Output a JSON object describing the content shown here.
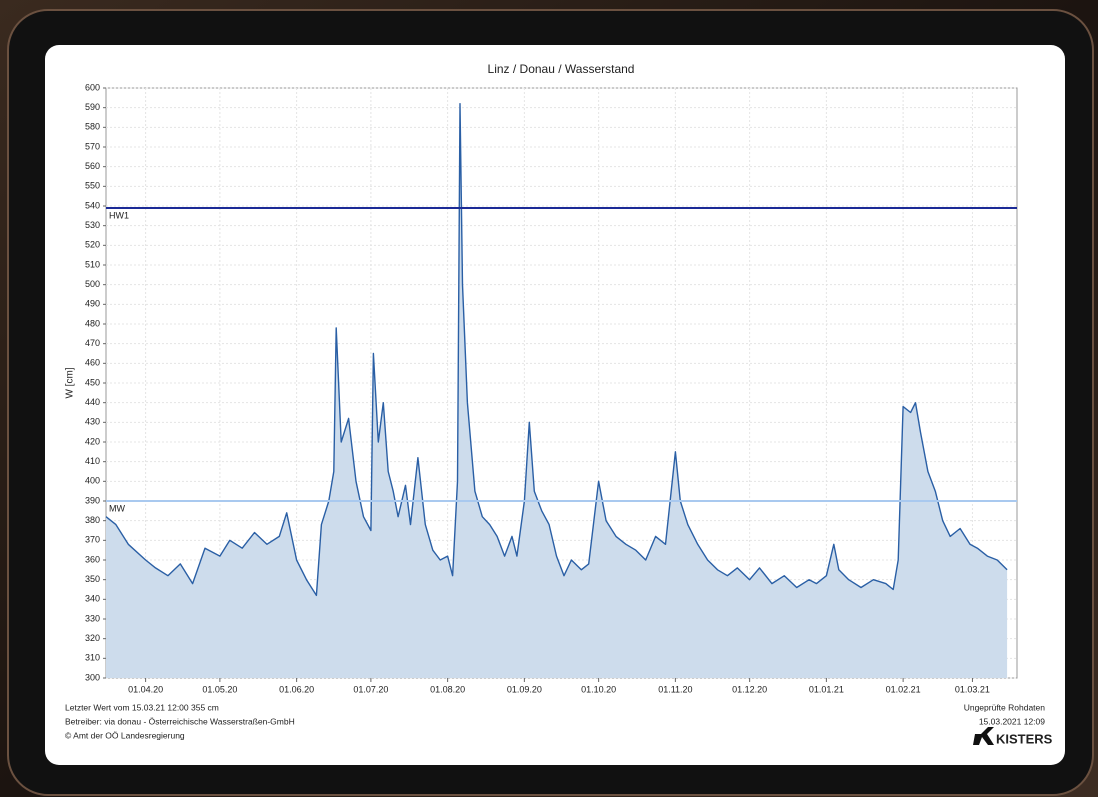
{
  "chart_data": {
    "type": "area",
    "title": "Linz / Donau / Wasserstand",
    "y_label": "W [cm]",
    "ylim": [
      300,
      600
    ],
    "yticks": [
      300,
      310,
      320,
      330,
      340,
      350,
      360,
      370,
      380,
      390,
      400,
      410,
      420,
      430,
      440,
      450,
      460,
      470,
      480,
      490,
      500,
      510,
      520,
      530,
      540,
      550,
      560,
      570,
      580,
      590,
      600
    ],
    "xlim": [
      "2020-03-16",
      "2021-03-19"
    ],
    "xticks": [
      {
        "value": "2020-04-01",
        "label": "01.04.20"
      },
      {
        "value": "2020-05-01",
        "label": "01.05.20"
      },
      {
        "value": "2020-06-01",
        "label": "01.06.20"
      },
      {
        "value": "2020-07-01",
        "label": "01.07.20"
      },
      {
        "value": "2020-08-01",
        "label": "01.08.20"
      },
      {
        "value": "2020-09-01",
        "label": "01.09.20"
      },
      {
        "value": "2020-10-01",
        "label": "01.10.20"
      },
      {
        "value": "2020-11-01",
        "label": "01.11.20"
      },
      {
        "value": "2020-12-01",
        "label": "01.12.20"
      },
      {
        "value": "2021-01-01",
        "label": "01.01.21"
      },
      {
        "value": "2021-02-01",
        "label": "01.02.21"
      },
      {
        "value": "2021-03-01",
        "label": "01.03.21"
      }
    ],
    "grid": true,
    "series": [
      {
        "color": "#2a5fa5",
        "fill": "#cddcec",
        "x": [
          "2020-03-16",
          "2020-03-20",
          "2020-03-25",
          "2020-04-01",
          "2020-04-05",
          "2020-04-10",
          "2020-04-15",
          "2020-04-20",
          "2020-04-25",
          "2020-05-01",
          "2020-05-05",
          "2020-05-10",
          "2020-05-15",
          "2020-05-20",
          "2020-05-25",
          "2020-05-28",
          "2020-06-01",
          "2020-06-05",
          "2020-06-09",
          "2020-06-11",
          "2020-06-14",
          "2020-06-16",
          "2020-06-17",
          "2020-06-19",
          "2020-06-22",
          "2020-06-25",
          "2020-06-28",
          "2020-07-01",
          "2020-07-02",
          "2020-07-04",
          "2020-07-06",
          "2020-07-08",
          "2020-07-10",
          "2020-07-12",
          "2020-07-15",
          "2020-07-17",
          "2020-07-20",
          "2020-07-23",
          "2020-07-26",
          "2020-07-29",
          "2020-08-01",
          "2020-08-03",
          "2020-08-05",
          "2020-08-06",
          "2020-08-07",
          "2020-08-09",
          "2020-08-12",
          "2020-08-15",
          "2020-08-18",
          "2020-08-21",
          "2020-08-24",
          "2020-08-27",
          "2020-08-29",
          "2020-09-01",
          "2020-09-03",
          "2020-09-05",
          "2020-09-08",
          "2020-09-11",
          "2020-09-14",
          "2020-09-17",
          "2020-09-20",
          "2020-09-24",
          "2020-09-27",
          "2020-10-01",
          "2020-10-04",
          "2020-10-08",
          "2020-10-12",
          "2020-10-16",
          "2020-10-20",
          "2020-10-24",
          "2020-10-28",
          "2020-11-01",
          "2020-11-03",
          "2020-11-06",
          "2020-11-10",
          "2020-11-14",
          "2020-11-18",
          "2020-11-22",
          "2020-11-26",
          "2020-12-01",
          "2020-12-05",
          "2020-12-10",
          "2020-12-15",
          "2020-12-20",
          "2020-12-25",
          "2020-12-28",
          "2021-01-01",
          "2021-01-04",
          "2021-01-06",
          "2021-01-10",
          "2021-01-15",
          "2021-01-20",
          "2021-01-25",
          "2021-01-28",
          "2021-01-30",
          "2021-02-01",
          "2021-02-04",
          "2021-02-06",
          "2021-02-08",
          "2021-02-11",
          "2021-02-14",
          "2021-02-17",
          "2021-02-20",
          "2021-02-24",
          "2021-02-28",
          "2021-03-03",
          "2021-03-07",
          "2021-03-11",
          "2021-03-15"
        ],
        "values": [
          382,
          378,
          368,
          360,
          356,
          352,
          358,
          348,
          366,
          362,
          370,
          366,
          374,
          368,
          372,
          384,
          360,
          350,
          342,
          378,
          390,
          405,
          478,
          420,
          432,
          400,
          382,
          375,
          465,
          420,
          440,
          405,
          395,
          382,
          398,
          378,
          412,
          378,
          365,
          360,
          362,
          352,
          400,
          592,
          500,
          440,
          395,
          382,
          378,
          372,
          362,
          372,
          362,
          390,
          430,
          395,
          385,
          378,
          362,
          352,
          360,
          355,
          358,
          400,
          380,
          372,
          368,
          365,
          360,
          372,
          368,
          415,
          390,
          378,
          368,
          360,
          355,
          352,
          356,
          350,
          356,
          348,
          352,
          346,
          350,
          348,
          352,
          368,
          355,
          350,
          346,
          350,
          348,
          345,
          360,
          438,
          435,
          440,
          425,
          405,
          395,
          380,
          372,
          376,
          368,
          366,
          362,
          360,
          355
        ]
      }
    ],
    "reference_lines": [
      {
        "name": "HW1",
        "value": 539,
        "color": "#1b2a96"
      },
      {
        "name": "MW",
        "value": 390,
        "color": "#a9c9ef"
      }
    ],
    "notes_left": [
      "Letzter Wert vom 15.03.21 12:00 355 cm",
      "Betreiber: via donau - Österreichische Wasserstraßen-GmbH",
      "© Amt der OÖ Landesregierung"
    ],
    "notes_right": [
      "Ungeprüfte Rohdaten",
      "15.03.2021 12:09"
    ],
    "logo": "KISTERS"
  }
}
